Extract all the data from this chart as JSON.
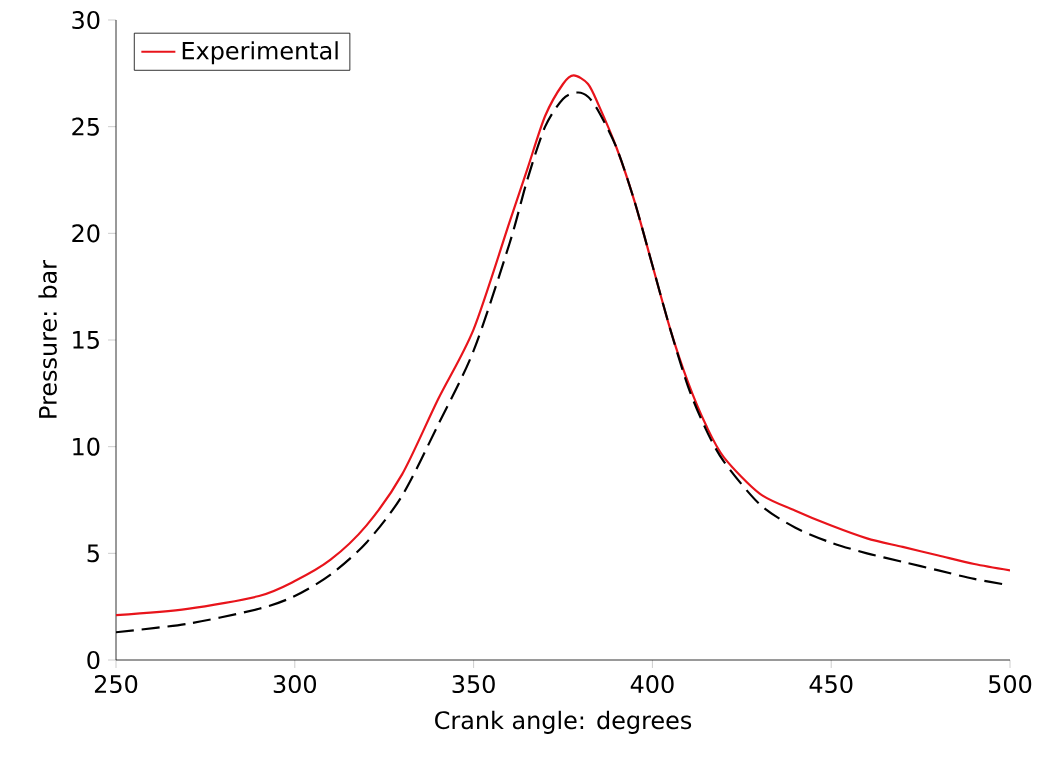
{
  "chart_data": {
    "type": "line",
    "xlabel": "Crank angle: degrees",
    "ylabel": "Pressure: bar",
    "xlim": [
      250,
      500
    ],
    "ylim": [
      0,
      30
    ],
    "xticks": [
      250,
      300,
      350,
      400,
      450,
      500
    ],
    "yticks": [
      0,
      5,
      10,
      15,
      20,
      25,
      30
    ],
    "grid": false,
    "legend": "top left",
    "series": [
      {
        "name": "Experimental",
        "color": "#e8141b",
        "line_style": "solid",
        "x": [
          250,
          270,
          290,
          300,
          310,
          320,
          330,
          340,
          350,
          360,
          365,
          370,
          375,
          378,
          382,
          385,
          390,
          395,
          400,
          405,
          410,
          415,
          420,
          430,
          440,
          450,
          460,
          470,
          480,
          490,
          500
        ],
        "values": [
          2.1,
          2.4,
          3.0,
          3.7,
          4.7,
          6.3,
          8.7,
          12.2,
          15.5,
          20.5,
          23,
          25.5,
          27,
          27.4,
          27,
          26,
          24,
          21.5,
          18.5,
          15.5,
          13,
          11,
          9.5,
          7.8,
          7,
          6.3,
          5.7,
          5.3,
          4.9,
          4.5,
          4.2
        ]
      },
      {
        "color": "#000000",
        "line_style": "dashed",
        "x": [
          250,
          270,
          290,
          300,
          310,
          320,
          330,
          340,
          350,
          360,
          365,
          370,
          375,
          379,
          382,
          385,
          390,
          395,
          400,
          405,
          410,
          415,
          420,
          430,
          440,
          450,
          460,
          470,
          480,
          490,
          500
        ],
        "values": [
          1.3,
          1.7,
          2.4,
          3.0,
          4.0,
          5.5,
          7.7,
          11,
          14.5,
          19.5,
          22.5,
          25,
          26.3,
          26.6,
          26.4,
          25.7,
          24,
          21.5,
          18.5,
          15.5,
          12.8,
          10.8,
          9.3,
          7.3,
          6.2,
          5.5,
          5,
          4.6,
          4.2,
          3.8,
          3.5
        ]
      }
    ]
  }
}
